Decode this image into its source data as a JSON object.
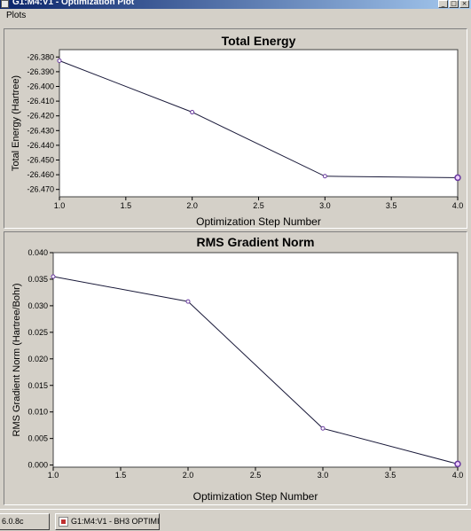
{
  "window": {
    "title": "G1:M4:V1 - Optimization Plot",
    "buttons": [
      "_",
      "□",
      "×"
    ]
  },
  "menu": {
    "items": [
      "Plots"
    ]
  },
  "taskbar": {
    "items": [
      "6.0.8c",
      "G1:M4:V1 - BH3 OPTIMI..."
    ]
  },
  "icons": {
    "window": "app-window-icon",
    "task": "gaussview-icon"
  },
  "colors": {
    "line": "#1a1a3a",
    "marker": "#6a3aa0",
    "plot_bg": "#ffffff"
  },
  "chart_data": [
    {
      "type": "line",
      "title": "Total Energy",
      "xlabel": "Optimization Step Number",
      "ylabel": "Total Energy (Hartree)",
      "x": [
        1.0,
        2.0,
        3.0,
        4.0
      ],
      "series": [
        {
          "values": [
            -26.3825,
            -26.4175,
            -26.461,
            -26.462
          ]
        }
      ],
      "xlim": [
        1.0,
        4.0
      ],
      "ylim": [
        -26.475,
        -26.375
      ],
      "xticks": [
        "1.0",
        "1.5",
        "2.0",
        "2.5",
        "3.0",
        "3.5",
        "4.0"
      ],
      "yticks": [
        "-26.380",
        "-26.390",
        "-26.400",
        "-26.410",
        "-26.420",
        "-26.430",
        "-26.440",
        "-26.450",
        "-26.460",
        "-26.470"
      ],
      "grid": false,
      "highlight_last": true
    },
    {
      "type": "line",
      "title": "RMS Gradient Norm",
      "xlabel": "Optimization Step Number",
      "ylabel": "RMS Gradient Norm (Hartree/Bohr)",
      "x": [
        1.0,
        2.0,
        3.0,
        4.0
      ],
      "series": [
        {
          "values": [
            0.0355,
            0.0308,
            0.0069,
            0.0002
          ]
        }
      ],
      "xlim": [
        1.0,
        4.0
      ],
      "ylim": [
        -0.0004,
        0.04
      ],
      "xticks": [
        "1.0",
        "1.5",
        "2.0",
        "2.5",
        "3.0",
        "3.5",
        "4.0"
      ],
      "yticks": [
        "0.040",
        "0.035",
        "0.030",
        "0.025",
        "0.020",
        "0.015",
        "0.010",
        "0.005",
        "0.000"
      ],
      "grid": false,
      "highlight_last": true
    }
  ]
}
